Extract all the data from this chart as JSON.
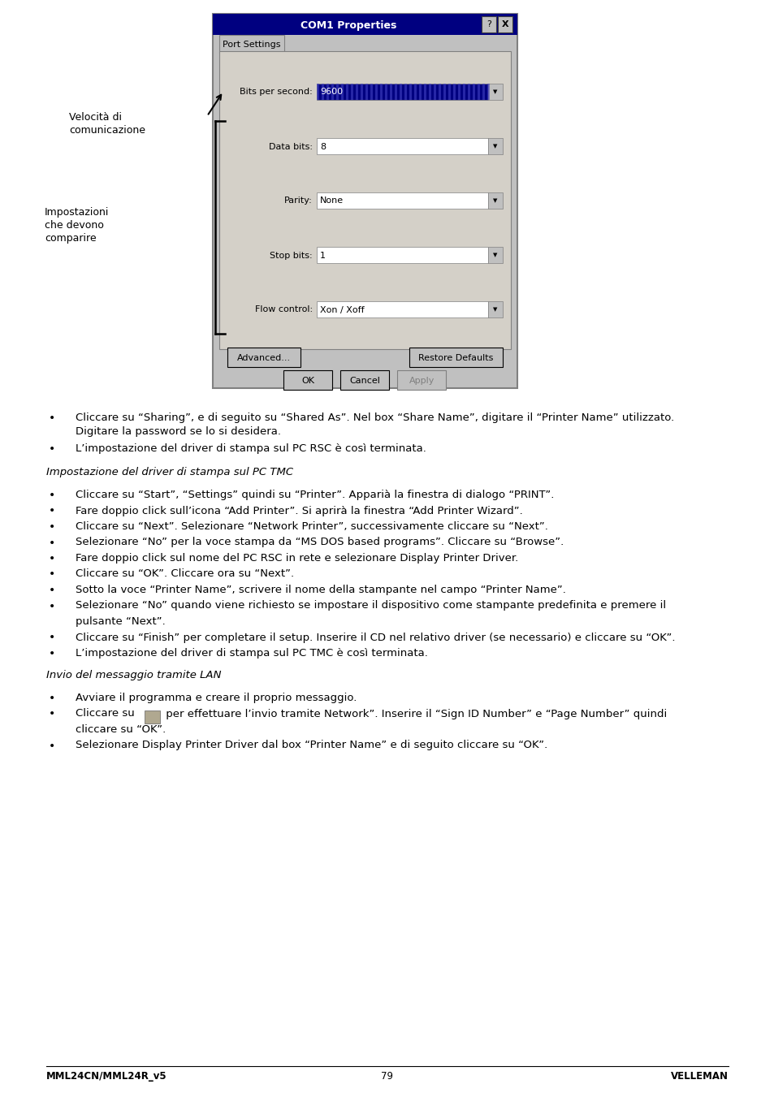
{
  "bg_color": "#ffffff",
  "footer_left": "MML24CN/MML24R_v5",
  "footer_center": "79",
  "footer_right": "VELLEMAN",
  "dialog_title": "COM1 Properties",
  "tab_label": "Port Settings",
  "fields": [
    {
      "label": "Bits per second:",
      "value": "9600",
      "highlighted": true
    },
    {
      "label": "Data bits:",
      "value": "8",
      "highlighted": false
    },
    {
      "label": "Parity:",
      "value": "None",
      "highlighted": false
    },
    {
      "label": "Stop bits:",
      "value": "1",
      "highlighted": false
    },
    {
      "label": "Flow control:",
      "value": "Xon / Xoff",
      "highlighted": false
    }
  ],
  "btn_advanced": "Advanced...",
  "btn_restore": "Restore Defaults",
  "btn_ok": "OK",
  "btn_cancel": "Cancel",
  "btn_apply": "Apply",
  "label_velocita_1": "Velocità di",
  "label_velocita_2": "comunicazione",
  "label_impost_1": "Impostazioni",
  "label_impost_2": "che devono",
  "label_impost_3": "comparire",
  "bullets_section1": [
    "Cliccare su “Sharing”, e di seguito su “Shared As”. Nel box “Share Name”, digitare il “Printer Name” utilizzato.",
    "Digitare la password se lo si desidera.",
    "L’impostazione del driver di stampa sul PC RSC è così terminata."
  ],
  "section2_title": "Impostazione del driver di stampa sul PC TMC",
  "bullets_section2": [
    "Cliccare su “Start”, “Settings” quindi su “Printer”. Apparià la finestra di dialogo “PRINT”.",
    "Fare doppio click sull’icona “Add Printer”. Si aprirà la finestra “Add Printer Wizard”.",
    "Cliccare su “Next”. Selezionare “Network Printer”, successivamente cliccare su “Next”.",
    "Selezionare “No” per la voce stampa da “MS DOS based programs”. Cliccare su “Browse”.",
    "Fare doppio click sul nome del PC RSC in rete e selezionare Display Printer Driver.",
    "Cliccare su “OK”. Cliccare ora su “Next”.",
    "Sotto la voce “Printer Name”, scrivere il nome della stampante nel campo “Printer Name”.",
    "Selezionare “No” quando viene richiesto se impostare il dispositivo come stampante predefinita e premere il",
    "pulsante “Next”.",
    "Cliccare su “Finish” per completare il setup. Inserire il CD nel relativo driver (se necessario) e cliccare su “OK”.",
    "L’impostazione del driver di stampa sul PC TMC è così terminata."
  ],
  "section3_title": "Invio del messaggio tramite LAN",
  "bullets_section3_1": "Avviare il programma e creare il proprio messaggio.",
  "bullets_section3_2a": "Cliccare su ",
  "bullets_section3_2b": " per effettuare l’invio tramite Network”. Inserire il “Sign ID Number” e “Page Number” quindi",
  "bullets_section3_2c": "cliccare su “OK”.",
  "bullets_section3_3": "Selezionare Display Printer Driver dal box “Printer Name” e di seguito cliccare su “OK”."
}
